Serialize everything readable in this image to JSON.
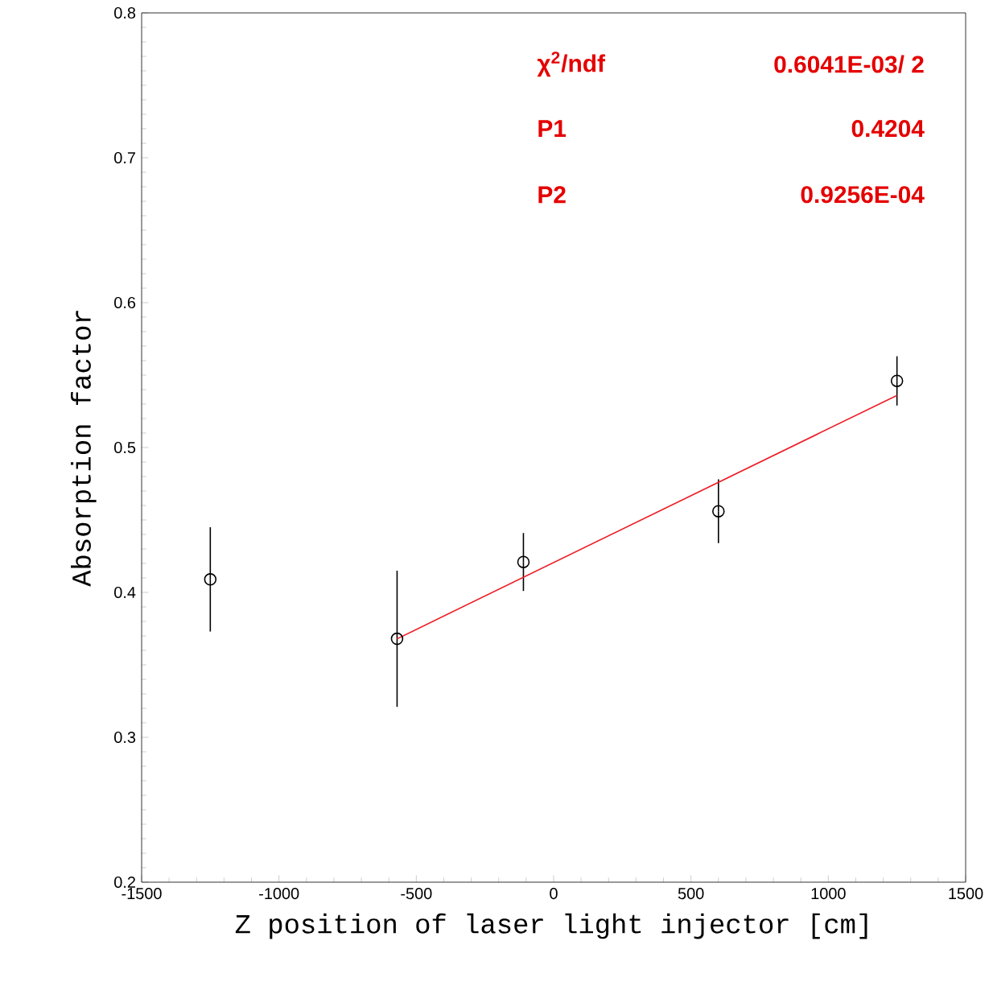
{
  "chart_data": {
    "type": "scatter",
    "xlabel": "Z position of laser light injector [cm]",
    "ylabel": "Absorption factor",
    "xlim": [
      -1500,
      1500
    ],
    "xticks": [
      -1500,
      -1000,
      -500,
      0,
      500,
      1000,
      1500
    ],
    "ylim": [
      0.2,
      0.8
    ],
    "yticks": [
      0.2,
      0.3,
      0.4,
      0.5,
      0.6,
      0.7,
      0.8
    ],
    "grid": false,
    "series": [
      {
        "color": "#000000",
        "marker": "circle",
        "x": [
          -1250,
          -570,
          -110,
          600,
          1250
        ],
        "values": [
          0.409,
          0.368,
          0.421,
          0.456,
          0.546
        ],
        "errors": [
          0.036,
          0.047,
          0.02,
          0.022,
          0.017
        ]
      },
      {
        "type": "line",
        "color": "#ee1c25",
        "marker": "none",
        "x": [
          -570,
          1250
        ],
        "values": [
          0.368,
          0.536
        ]
      }
    ],
    "annotations": [
      "χ$^{2}$/ndf",
      "0.6041E-03/   2",
      "P1",
      "0.4204",
      "P2",
      "0.9256E-04"
    ]
  }
}
